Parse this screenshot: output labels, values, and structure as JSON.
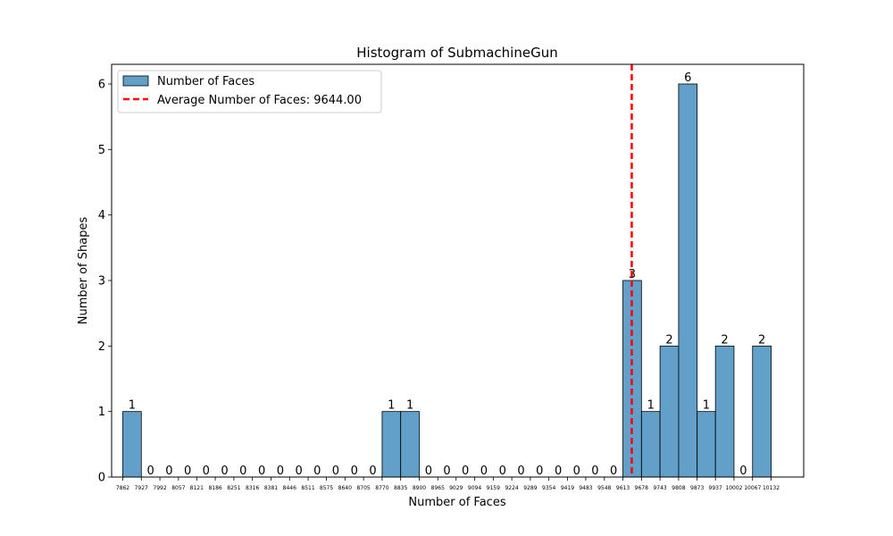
{
  "chart_data": {
    "type": "bar",
    "title": "Histogram of SubmachineGun",
    "xlabel": "Number of Faces",
    "ylabel": "Number of Shapes",
    "ylim": [
      0,
      6.3
    ],
    "y_ticks": [
      0,
      1,
      2,
      3,
      4,
      5,
      6
    ],
    "x_range": [
      7823,
      10246
    ],
    "bin_edges": [
      7862,
      7927,
      7992,
      8057,
      8121,
      8186,
      8251,
      8316,
      8381,
      8446,
      8511,
      8575,
      8640,
      8705,
      8770,
      8835,
      8900,
      8965,
      9029,
      9094,
      9159,
      9224,
      9289,
      9354,
      9419,
      9483,
      9548,
      9613,
      9678,
      9743,
      9808,
      9873,
      9937,
      10002,
      10067,
      10132
    ],
    "counts": [
      1,
      0,
      0,
      0,
      0,
      0,
      0,
      0,
      0,
      0,
      0,
      0,
      0,
      0,
      1,
      1,
      0,
      0,
      0,
      0,
      0,
      0,
      0,
      0,
      0,
      0,
      0,
      3,
      1,
      2,
      6,
      1,
      2,
      0,
      2
    ],
    "average": 9644.0,
    "bar_color": "#1f77b4",
    "average_line_color": "#ff0000",
    "grid": false,
    "legend_position": "top-left",
    "legend": {
      "bars_label": "Number of Faces",
      "average_label": "Average Number of Faces: 9644.00"
    }
  }
}
